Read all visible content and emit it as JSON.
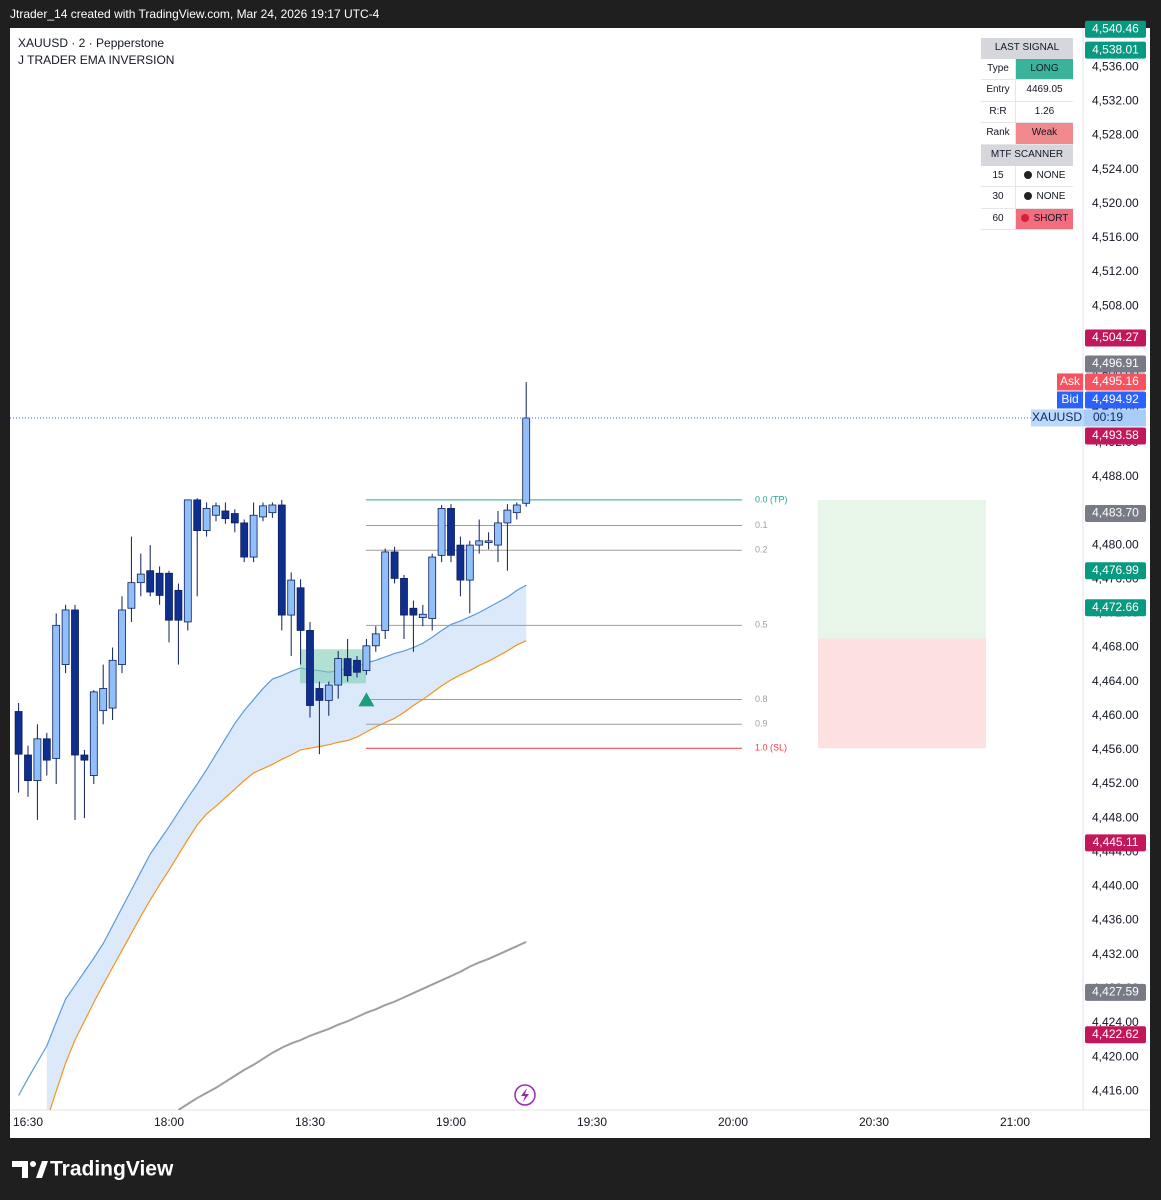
{
  "header": {
    "text": "Jtrader_14 created with TradingView.com, Mar 24, 2026 19:17 UTC-4"
  },
  "footer": {
    "brand": "TradingView"
  },
  "chart_data": {
    "type": "candlestick",
    "symbol": "XAUUSD · 2 · Pepperstone",
    "indicator": "J TRADER EMA INVERSION",
    "categories": [
      null,
      "16:30",
      null,
      null,
      null,
      null,
      null,
      null,
      null,
      null,
      null,
      null,
      null,
      null,
      null,
      null,
      "18:00",
      null,
      null,
      null,
      null,
      null,
      null,
      null,
      null,
      null,
      null,
      null,
      null,
      null,
      null,
      "18:30",
      null,
      null,
      null,
      null,
      null,
      null,
      null,
      null,
      null,
      null,
      null,
      null,
      null,
      null,
      "19:00",
      null,
      null,
      null,
      null,
      null,
      null,
      null,
      null,
      null,
      null,
      null,
      null,
      null,
      null,
      "19:30",
      null,
      null,
      null,
      null,
      null,
      null,
      null,
      null,
      null,
      null,
      null,
      null,
      null,
      null,
      "20:00",
      null,
      null,
      null,
      null,
      null,
      null,
      null,
      null,
      null,
      null,
      null,
      null,
      null,
      null,
      "20:30",
      null,
      null,
      null,
      null,
      null,
      null,
      null,
      null,
      null,
      null,
      null,
      null,
      null,
      null,
      "21:00",
      null,
      null,
      null,
      null,
      null,
      null,
      null
    ],
    "open": [
      4460.5,
      4455.4,
      4452.4,
      4457.3,
      4455.0,
      4466.0,
      4472.4,
      4455.4,
      4453.0,
      4460.6,
      4460.9,
      4466.0,
      4472.6,
      4475.6,
      4477.0,
      4476.7,
      4476.7,
      4474.7,
      4471.0,
      4485.3,
      4481.7,
      4483.5,
      4484.0,
      4483.7,
      4482.6,
      4478.6,
      4483.3,
      4483.8,
      4484.7,
      4471.8,
      4475.0,
      4470.0,
      4463.2,
      4461.8,
      4463.6,
      4466.7,
      4466.5,
      4465.3,
      4468.2,
      4470.0,
      4479.2,
      4476.1,
      4472.6,
      4471.5,
      4471.4,
      4478.8,
      4484.3,
      4480.0,
      4475.9,
      4480.0,
      4480.3,
      4480.0,
      4482.6,
      4483.8,
      4484.9,
      null,
      null,
      null,
      null,
      null,
      null,
      null,
      null,
      null,
      null,
      null,
      null,
      null,
      null,
      null,
      null,
      null,
      null,
      null,
      null,
      null,
      null,
      null,
      null,
      null,
      null,
      null,
      null,
      null,
      null,
      null,
      null,
      null,
      null,
      null,
      null,
      null,
      null,
      null,
      null,
      null,
      null,
      null,
      null,
      null,
      null,
      null,
      null,
      null,
      null,
      null,
      null,
      null,
      null,
      null,
      null,
      null,
      null,
      null
    ],
    "high": [
      4461.5,
      4456.5,
      4459.0,
      4458.0,
      4472.0,
      4473.0,
      4473.0,
      4456.0,
      4463.0,
      4466.0,
      4468.0,
      4474.0,
      4481.0,
      4479.0,
      4480.0,
      4477.5,
      4477.0,
      4475.5,
      4485.3,
      4485.5,
      4485.0,
      4485.0,
      4485.0,
      4484.2,
      4483.0,
      4485.0,
      4485.0,
      4485.0,
      4485.3,
      4476.8,
      4476.0,
      4471.0,
      4464.0,
      4464.0,
      4467.6,
      4469.0,
      4467.0,
      4469.0,
      4470.5,
      4479.6,
      4479.8,
      4476.5,
      4473.5,
      4473.0,
      4479.0,
      4484.7,
      4484.8,
      4481.0,
      4480.5,
      4483.0,
      4481.5,
      4484.0,
      4484.8,
      4485.0,
      4499.1,
      null,
      null,
      null,
      null,
      null,
      null,
      null,
      null,
      null,
      null,
      null,
      null,
      null,
      null,
      null,
      null,
      null,
      null,
      null,
      null,
      null,
      null,
      null,
      null,
      null,
      null,
      null,
      null,
      null,
      null,
      null,
      null,
      null,
      null,
      null,
      null,
      null,
      null,
      null,
      null,
      null,
      null,
      null,
      null,
      null,
      null,
      null,
      null,
      null,
      null,
      null,
      null,
      null,
      null,
      null,
      null,
      null,
      null,
      null
    ],
    "low": [
      4451.0,
      4450.5,
      4447.8,
      4453.0,
      4452.0,
      4465.0,
      4447.8,
      4448.0,
      4452.0,
      4459.0,
      4459.5,
      4465.0,
      4471.0,
      4474.0,
      4474.0,
      4473.0,
      4468.6,
      4466.0,
      4470.0,
      4474.0,
      4481.0,
      4482.8,
      4482.5,
      4481.5,
      4478.0,
      4478.0,
      4482.8,
      4483.2,
      4470.0,
      4467.0,
      4466.0,
      4459.8,
      4455.5,
      4460.0,
      4462.0,
      4464.0,
      4464.5,
      4464.8,
      4467.5,
      4469.0,
      4475.5,
      4469.0,
      4467.5,
      4470.5,
      4470.0,
      4478.0,
      4478.0,
      4474.0,
      4472.0,
      4479.0,
      4479.5,
      4478.0,
      4477.0,
      4483.0,
      4484.5,
      null,
      null,
      null,
      null,
      null,
      null,
      null,
      null,
      null,
      null,
      null,
      null,
      null,
      null,
      null,
      null,
      null,
      null,
      null,
      null,
      null,
      null,
      null,
      null,
      null,
      null,
      null,
      null,
      null,
      null,
      null,
      null,
      null,
      null,
      null,
      null,
      null,
      null,
      null,
      null,
      null,
      null,
      null,
      null,
      null,
      null,
      null,
      null,
      null,
      null,
      null,
      null,
      null,
      null,
      null,
      null,
      null,
      null,
      null
    ],
    "close": [
      4455.5,
      4452.4,
      4457.3,
      4454.8,
      4470.6,
      4472.4,
      4455.4,
      4454.8,
      4462.8,
      4463.2,
      4466.5,
      4472.4,
      4475.6,
      4476.6,
      4474.5,
      4474.1,
      4471.2,
      4471.2,
      4485.3,
      4481.7,
      4484.3,
      4484.6,
      4483.1,
      4482.6,
      4478.6,
      4483.5,
      4484.6,
      4484.7,
      4471.8,
      4475.9,
      4470.0,
      4461.2,
      4461.8,
      4463.6,
      4466.7,
      4464.7,
      4465.1,
      4468.2,
      4469.6,
      4479.2,
      4476.1,
      4471.8,
      4471.8,
      4471.9,
      4478.6,
      4484.3,
      4478.8,
      4475.9,
      4480.0,
      4480.5,
      4480.5,
      4482.6,
      4484.1,
      4484.7,
      4494.9,
      null,
      null,
      null,
      null,
      null,
      null,
      null,
      null,
      null,
      null,
      null,
      null,
      null,
      null,
      null,
      null,
      null,
      null,
      null,
      null,
      null,
      null,
      null,
      null,
      null,
      null,
      null,
      null,
      null,
      null,
      null,
      null,
      null,
      null,
      null,
      null,
      null,
      null,
      null,
      null,
      null,
      null,
      null,
      null,
      null,
      null,
      null,
      null,
      null,
      null,
      null,
      null,
      null,
      null,
      null,
      null,
      null,
      null,
      null
    ],
    "up_color": "#90bff9",
    "down_color": "#0f2f8f",
    "wick_color": "#0d1f5c",
    "lines": [
      {
        "color": "#5b9bd5",
        "values": [
          4415.5,
          4417.5,
          4419.4,
          4421.3,
          4424.1,
          4426.8,
          4428.4,
          4430.0,
          4431.6,
          4433.3,
          4435.4,
          4437.5,
          4439.6,
          4441.7,
          4443.8,
          4445.4,
          4447.0,
          4448.7,
          4450.4,
          4452.0,
          4453.7,
          4455.5,
          4457.3,
          4459.1,
          4460.6,
          4461.9,
          4463.2,
          4464.3,
          4464.7,
          4465.2,
          4465.6,
          4465.4,
          4465.3,
          4465.1,
          4465.3,
          4465.6,
          4465.8,
          4466.2,
          4466.5,
          4466.9,
          4467.3,
          4467.6,
          4468.0,
          4468.5,
          4469.2,
          4470.0,
          4470.7,
          4471.1,
          4471.6,
          4472.1,
          4472.7,
          4473.3,
          4473.9,
          4474.7,
          4475.3,
          null,
          null,
          null,
          null,
          null,
          null,
          null,
          null,
          null,
          null,
          null,
          null,
          null,
          null,
          null,
          null,
          null,
          null,
          null,
          null,
          null,
          null,
          null,
          null,
          null,
          null,
          null,
          null,
          null,
          null,
          null,
          null,
          null,
          null,
          null,
          null,
          null,
          null,
          null,
          null,
          null,
          null,
          null,
          null,
          null,
          null,
          null,
          null,
          null,
          null,
          null,
          null,
          null,
          null,
          null,
          null,
          null,
          null,
          null
        ]
      },
      {
        "color": "#f7931a",
        "values": [
          null,
          null,
          null,
          4412.6,
          4416.0,
          4419.3,
          4422.0,
          4424.2,
          4426.4,
          4428.5,
          4430.5,
          4432.5,
          4434.5,
          4436.5,
          4438.4,
          4440.2,
          4441.9,
          4443.7,
          4445.5,
          4447.2,
          4448.5,
          4449.4,
          4450.4,
          4451.4,
          4452.4,
          4453.3,
          4453.8,
          4454.3,
          4454.9,
          4455.4,
          4456.0,
          4456.2,
          4456.4,
          4456.6,
          4456.9,
          4457.1,
          4457.5,
          4458.1,
          4458.7,
          4459.2,
          4459.7,
          4460.4,
          4461.2,
          4461.9,
          4462.7,
          4463.5,
          4464.2,
          4464.8,
          4465.3,
          4465.9,
          4466.4,
          4467.0,
          4467.6,
          4468.3,
          4468.8,
          null,
          null,
          null,
          null,
          null,
          null,
          null,
          null,
          null,
          null,
          null,
          null,
          null,
          null,
          null,
          null,
          null,
          null,
          null,
          null,
          null,
          null,
          null,
          null,
          null,
          null,
          null,
          null,
          null,
          null,
          null,
          null,
          null,
          null,
          null,
          null,
          null,
          null,
          null,
          null,
          null,
          null,
          null,
          null,
          null,
          null,
          null,
          null,
          null,
          null,
          null,
          null,
          null,
          null,
          null,
          null,
          null,
          null,
          null
        ]
      },
      {
        "color": "#9e9e9e",
        "values": [
          null,
          null,
          null,
          null,
          null,
          null,
          null,
          null,
          null,
          null,
          null,
          null,
          null,
          null,
          null,
          null,
          null,
          4413.8,
          4414.5,
          4415.2,
          4415.8,
          4416.4,
          4417.1,
          4417.8,
          4418.5,
          4419.1,
          4419.8,
          4420.5,
          4421.1,
          4421.6,
          4422.0,
          4422.5,
          4422.9,
          4423.3,
          4423.8,
          4424.2,
          4424.7,
          4425.2,
          4425.6,
          4426.1,
          4426.5,
          4427.0,
          4427.5,
          4428.0,
          4428.5,
          4429.0,
          4429.5,
          4430.0,
          4430.6,
          4431.1,
          4431.5,
          4432.0,
          4432.5,
          4433.0,
          4433.5,
          null,
          null,
          null,
          null,
          null,
          null,
          null,
          null,
          null,
          null,
          null,
          null,
          null,
          null,
          null,
          null,
          null,
          null,
          null,
          null,
          null,
          null,
          null,
          null,
          null,
          null,
          null,
          null,
          null,
          null,
          null,
          null,
          null,
          null,
          null,
          null,
          null,
          null,
          null,
          null,
          null,
          null,
          null,
          null,
          null,
          null,
          null,
          null,
          null,
          null,
          null,
          null,
          null,
          null,
          null,
          null,
          null,
          null,
          null
        ]
      }
    ],
    "band_fill": "#dbe9fb",
    "ylim": [
      4413.8,
      4540.6
    ],
    "grid": false,
    "yticks": [
      {
        "value": 4536,
        "label": "4,536.00"
      },
      {
        "value": 4532,
        "label": "4,532.00"
      },
      {
        "value": 4528,
        "label": "4,528.00"
      },
      {
        "value": 4524,
        "label": "4,524.00"
      },
      {
        "value": 4520,
        "label": "4,520.00"
      },
      {
        "value": 4516,
        "label": "4,516.00"
      },
      {
        "value": 4512,
        "label": "4,512.00"
      },
      {
        "value": 4508,
        "label": "4,508.00"
      },
      {
        "value": 4504,
        "label": "4,504.00"
      },
      {
        "value": 4500,
        "label": "4,500.00"
      },
      {
        "value": 4496,
        "label": "4,496.00"
      },
      {
        "value": 4492,
        "label": "4,492.00"
      },
      {
        "value": 4488,
        "label": "4,488.00"
      },
      {
        "value": 4484,
        "label": "4,484.00"
      },
      {
        "value": 4480,
        "label": "4,480.00"
      },
      {
        "value": 4476,
        "label": "4,476.00"
      },
      {
        "value": 4472,
        "label": "4,472.00"
      },
      {
        "value": 4468,
        "label": "4,468.00"
      },
      {
        "value": 4464,
        "label": "4,464.00"
      },
      {
        "value": 4460,
        "label": "4,460.00"
      },
      {
        "value": 4456,
        "label": "4,456.00"
      },
      {
        "value": 4452,
        "label": "4,452.00"
      },
      {
        "value": 4448,
        "label": "4,448.00"
      },
      {
        "value": 4444,
        "label": "4,444.00"
      },
      {
        "value": 4440,
        "label": "4,440.00"
      },
      {
        "value": 4436,
        "label": "4,436.00"
      },
      {
        "value": 4432,
        "label": "4,432.00"
      },
      {
        "value": 4428,
        "label": "4,428.00"
      },
      {
        "value": 4424,
        "label": "4,424.00"
      },
      {
        "value": 4420,
        "label": "4,420.00"
      },
      {
        "value": 4416,
        "label": "4,416.00"
      }
    ],
    "price_tags": [
      {
        "value": 4540.46,
        "label": "4,540.46",
        "color": "#089981"
      },
      {
        "value": 4538.01,
        "label": "4,538.01",
        "color": "#089981"
      },
      {
        "value": 4504.27,
        "label": "4,504.27",
        "color": "#c2185b"
      },
      {
        "value": 4496.91,
        "label": "4,496.91",
        "color": "#787b86"
      },
      {
        "value": 4495.16,
        "label": "4,495.16",
        "prefix": "Ask",
        "color": "#f7525f"
      },
      {
        "value": 4494.92,
        "label": "4,494.92",
        "prefix": "Bid",
        "color": "#2962ff"
      },
      {
        "value": 4493.58,
        "label": "4,493.58",
        "color": "#c2185b"
      },
      {
        "value": 4483.7,
        "label": "4,483.70",
        "color": "#787b86"
      },
      {
        "value": 4476.99,
        "label": "4,476.99",
        "color": "#089981"
      },
      {
        "value": 4472.66,
        "label": "4,472.66",
        "color": "#089981"
      },
      {
        "value": 4445.11,
        "label": "4,445.11",
        "color": "#c2185b"
      },
      {
        "value": 4427.59,
        "label": "4,427.59",
        "color": "#787b86"
      },
      {
        "value": 4422.62,
        "label": "4,422.62",
        "color": "#c2185b"
      }
    ],
    "countdown": {
      "symbol": "XAUUSD",
      "time": "00:19"
    },
    "fib_levels": [
      {
        "value": 4485.3,
        "label": "0.0 (TP)",
        "color": "#26a69a"
      },
      {
        "value": 4482.3,
        "label": "0.1",
        "color": "#9e9e9e"
      },
      {
        "value": 4479.4,
        "label": "0.2",
        "color": "#9e9e9e"
      },
      {
        "value": 4470.6,
        "label": "0.5",
        "color": "#9e9e9e"
      },
      {
        "value": 4461.9,
        "label": "0.8",
        "color": "#9e9e9e"
      },
      {
        "value": 4459.0,
        "label": "0.9",
        "color": "#9e9e9e"
      },
      {
        "value": 4456.2,
        "label": "1.0 (SL)",
        "color": "#f23645"
      }
    ],
    "signal_zone": {
      "top": 4467.8,
      "bottom": 4463.8,
      "color": "#7fcdb8"
    },
    "signal_marker": {
      "value": 4461.8,
      "color": "#1a9e7c"
    }
  },
  "signal_table": {
    "title": "LAST SIGNAL",
    "rows": [
      [
        "Type",
        "LONG"
      ],
      [
        "Entry",
        4469.05
      ],
      [
        "R:R",
        1.26
      ],
      [
        "Rank",
        "Weak"
      ]
    ],
    "scanner_title": "MTF SCANNER",
    "scanner_rows": [
      [
        15,
        "NONE"
      ],
      [
        30,
        "NONE"
      ],
      [
        60,
        "SHORT"
      ]
    ]
  }
}
